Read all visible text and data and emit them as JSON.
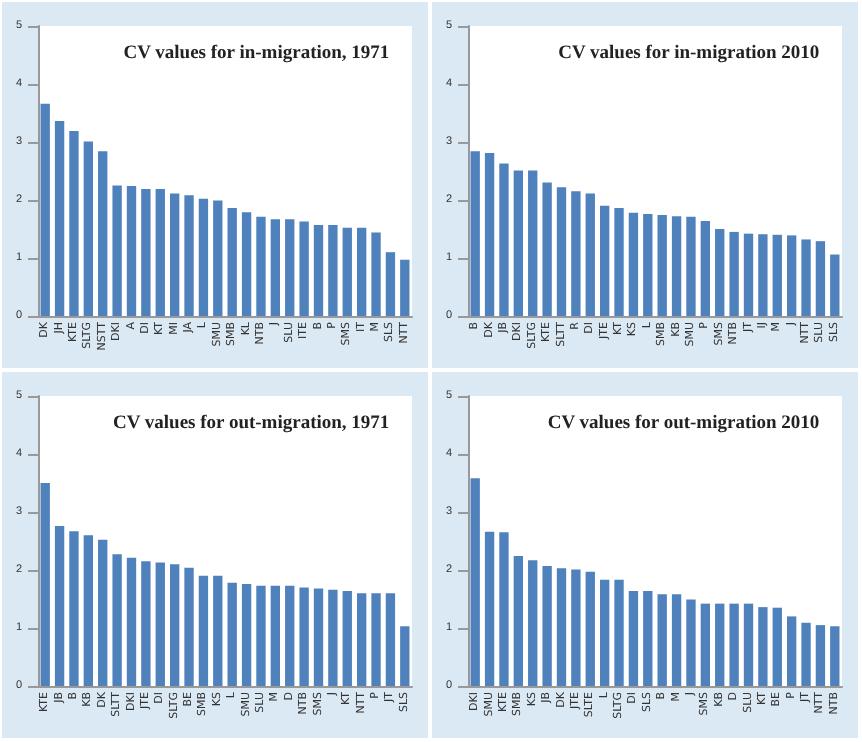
{
  "chart_data": [
    {
      "type": "bar",
      "title": "CV values for in-migration, 1971",
      "categories": [
        "DK",
        "JH",
        "KTE",
        "SLTG",
        "NSTT",
        "DKI",
        "A",
        "DI",
        "KT",
        "MI",
        "JA",
        "L",
        "SMU",
        "SMB",
        "KL",
        "NTB",
        "J",
        "SLU",
        "ITE",
        "B",
        "P",
        "SMS",
        "IT",
        "M",
        "SLS",
        "NTT"
      ],
      "values": [
        3.66,
        3.36,
        3.19,
        3.01,
        2.84,
        2.25,
        2.24,
        2.19,
        2.19,
        2.11,
        2.08,
        2.02,
        1.99,
        1.86,
        1.79,
        1.71,
        1.67,
        1.67,
        1.63,
        1.57,
        1.57,
        1.52,
        1.52,
        1.44,
        1.1,
        0.97
      ],
      "color": "#4f81bd",
      "ylim": [
        0,
        5
      ],
      "yticks": [
        0,
        1,
        2,
        3,
        4,
        5
      ]
    },
    {
      "type": "bar",
      "title": "CV values for in-migration 2010",
      "categories": [
        "B",
        "DK",
        "JB",
        "DKI",
        "SLTG",
        "KTE",
        "SLTT",
        "R",
        "DI",
        "JTE",
        "KT",
        "KS",
        "L",
        "SMB",
        "KB",
        "SMU",
        "P",
        "SMS",
        "NTB",
        "JT",
        "IJ",
        "M",
        "J",
        "NTT",
        "SLU",
        "SLS"
      ],
      "values": [
        2.84,
        2.81,
        2.63,
        2.51,
        2.51,
        2.3,
        2.22,
        2.15,
        2.11,
        1.9,
        1.86,
        1.78,
        1.76,
        1.74,
        1.72,
        1.71,
        1.64,
        1.5,
        1.45,
        1.42,
        1.41,
        1.4,
        1.39,
        1.32,
        1.29,
        1.06
      ],
      "color": "#4f81bd",
      "ylim": [
        0,
        5
      ],
      "yticks": [
        0,
        1,
        2,
        3,
        4,
        5
      ]
    },
    {
      "type": "bar",
      "title": "CV values for out-migration, 1971",
      "categories": [
        "KTE",
        "JB",
        "B",
        "KB",
        "DK",
        "SLTT",
        "DKI",
        "JTE",
        "DI",
        "SLTG",
        "BE",
        "SMB",
        "KS",
        "L",
        "SMU",
        "SLU",
        "M",
        "D",
        "NTB",
        "SMS",
        "J",
        "KT",
        "NTT",
        "P",
        "JT",
        "SLS"
      ],
      "values": [
        3.5,
        2.76,
        2.67,
        2.6,
        2.52,
        2.27,
        2.21,
        2.15,
        2.13,
        2.1,
        2.04,
        1.9,
        1.9,
        1.78,
        1.76,
        1.73,
        1.73,
        1.73,
        1.7,
        1.68,
        1.66,
        1.64,
        1.6,
        1.6,
        1.6,
        1.03
      ],
      "color": "#4f81bd",
      "ylim": [
        0,
        5
      ],
      "yticks": [
        0,
        1,
        2,
        3,
        4,
        5
      ]
    },
    {
      "type": "bar",
      "title": "CV values for out-migration 2010",
      "categories": [
        "DKI",
        "SMU",
        "KTE",
        "SMB",
        "KS",
        "JB",
        "DK",
        "JTE",
        "SLTE",
        "L",
        "SLTG",
        "DI",
        "SLS",
        "B",
        "M",
        "J",
        "SMS",
        "KB",
        "D",
        "SLU",
        "KT",
        "BE",
        "P",
        "JT",
        "NTT",
        "NTB"
      ],
      "values": [
        3.58,
        2.66,
        2.65,
        2.24,
        2.17,
        2.07,
        2.03,
        2.01,
        1.97,
        1.83,
        1.83,
        1.64,
        1.64,
        1.58,
        1.58,
        1.49,
        1.42,
        1.42,
        1.42,
        1.42,
        1.36,
        1.35,
        1.2,
        1.09,
        1.05,
        1.03
      ],
      "color": "#4f81bd",
      "ylim": [
        0,
        5
      ],
      "yticks": [
        0,
        1,
        2,
        3,
        4,
        5
      ]
    }
  ]
}
